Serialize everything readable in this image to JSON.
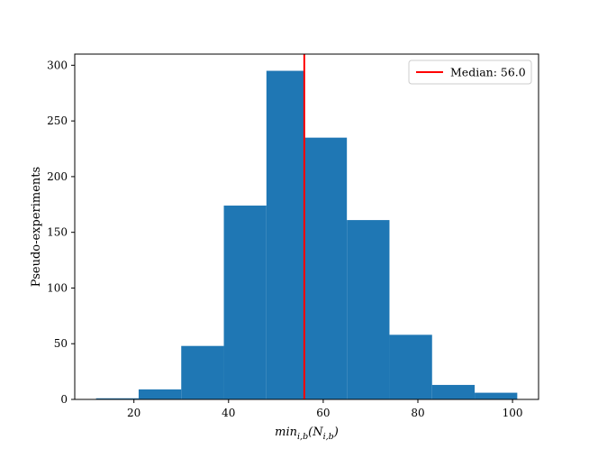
{
  "chart_data": {
    "type": "bar",
    "subtype": "histogram",
    "xlabel": "min_{i,b}(N_{i,b})",
    "ylabel": "Pseudo-experiments",
    "xlim": [
      7.5,
      105.5
    ],
    "ylim": [
      0,
      310
    ],
    "xticks": [
      20,
      40,
      60,
      80,
      100
    ],
    "yticks": [
      0,
      50,
      100,
      150,
      200,
      250,
      300
    ],
    "bin_edges": [
      12,
      21,
      30,
      39,
      48,
      56,
      65,
      74,
      83,
      92,
      101
    ],
    "values": [
      1,
      9,
      48,
      174,
      295,
      235,
      161,
      58,
      13,
      6
    ],
    "bar_color": "#1f77b4",
    "median": 56.0,
    "median_color": "#ff0000",
    "legend": {
      "position": "top-right",
      "entries": [
        {
          "label": "Median: 56.0",
          "color": "#ff0000"
        }
      ]
    },
    "grid": false
  }
}
